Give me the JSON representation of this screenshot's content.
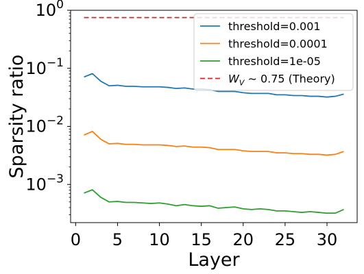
{
  "chart_data": {
    "type": "line",
    "title": "",
    "xlabel": "Layer",
    "ylabel": "Sparsity ratio",
    "yscale": "log",
    "xlim": [
      -0.6,
      33.6
    ],
    "ylim": [
      0.00022,
      1.0
    ],
    "xticks": [
      0,
      5,
      10,
      15,
      20,
      25,
      30
    ],
    "xtick_labels": [
      "0",
      "5",
      "10",
      "15",
      "20",
      "25",
      "30"
    ],
    "yticks": [
      0.001,
      0.01,
      0.1,
      1
    ],
    "ytick_labels": [
      {
        "base": "10",
        "exp": "−3"
      },
      {
        "base": "10",
        "exp": "−2"
      },
      {
        "base": "10",
        "exp": "−1"
      },
      {
        "base": "10",
        "exp": "0"
      }
    ],
    "grid": false,
    "legend_position": "top-right",
    "x": [
      1,
      2,
      3,
      4,
      5,
      6,
      7,
      8,
      9,
      10,
      11,
      12,
      13,
      14,
      15,
      16,
      17,
      18,
      19,
      20,
      21,
      22,
      23,
      24,
      25,
      26,
      27,
      28,
      29,
      30,
      31,
      32
    ],
    "series": [
      {
        "name": "threshold=0.001",
        "color": "#1f77b4",
        "style": "solid",
        "values": [
          0.071,
          0.081,
          0.06,
          0.05,
          0.051,
          0.049,
          0.049,
          0.048,
          0.048,
          0.048,
          0.047,
          0.045,
          0.046,
          0.044,
          0.044,
          0.043,
          0.04,
          0.04,
          0.04,
          0.038,
          0.037,
          0.037,
          0.037,
          0.035,
          0.035,
          0.034,
          0.034,
          0.033,
          0.033,
          0.032,
          0.033,
          0.036
        ]
      },
      {
        "name": "threshold=0.0001",
        "color": "#ff7f0e",
        "style": "solid",
        "values": [
          0.0071,
          0.0082,
          0.006,
          0.005,
          0.0051,
          0.0049,
          0.0049,
          0.0048,
          0.0048,
          0.0048,
          0.0047,
          0.0045,
          0.0046,
          0.0044,
          0.0044,
          0.0043,
          0.004,
          0.004,
          0.004,
          0.0038,
          0.0037,
          0.0037,
          0.0037,
          0.0035,
          0.0035,
          0.0034,
          0.0034,
          0.0033,
          0.0033,
          0.0032,
          0.0033,
          0.0037
        ]
      },
      {
        "name": "threshold=1e-05",
        "color": "#2ca02c",
        "style": "solid",
        "values": [
          0.00071,
          0.00081,
          0.0006,
          0.0005,
          0.00051,
          0.00049,
          0.00049,
          0.00048,
          0.00047,
          0.00048,
          0.00046,
          0.00043,
          0.00045,
          0.00043,
          0.00042,
          0.00043,
          0.00039,
          0.0004,
          0.00041,
          0.00038,
          0.00037,
          0.00038,
          0.00037,
          0.00035,
          0.00035,
          0.00034,
          0.00033,
          0.00034,
          0.00033,
          0.00032,
          0.00032,
          0.00037
        ]
      }
    ],
    "reference_line": {
      "name_prefix": "W",
      "name_subscript": "V",
      "name_suffix": " ∼ 0.75 (Theory)",
      "value": 0.75,
      "color": "#d62728",
      "style": "dashed",
      "x_range": [
        1,
        32
      ]
    }
  }
}
